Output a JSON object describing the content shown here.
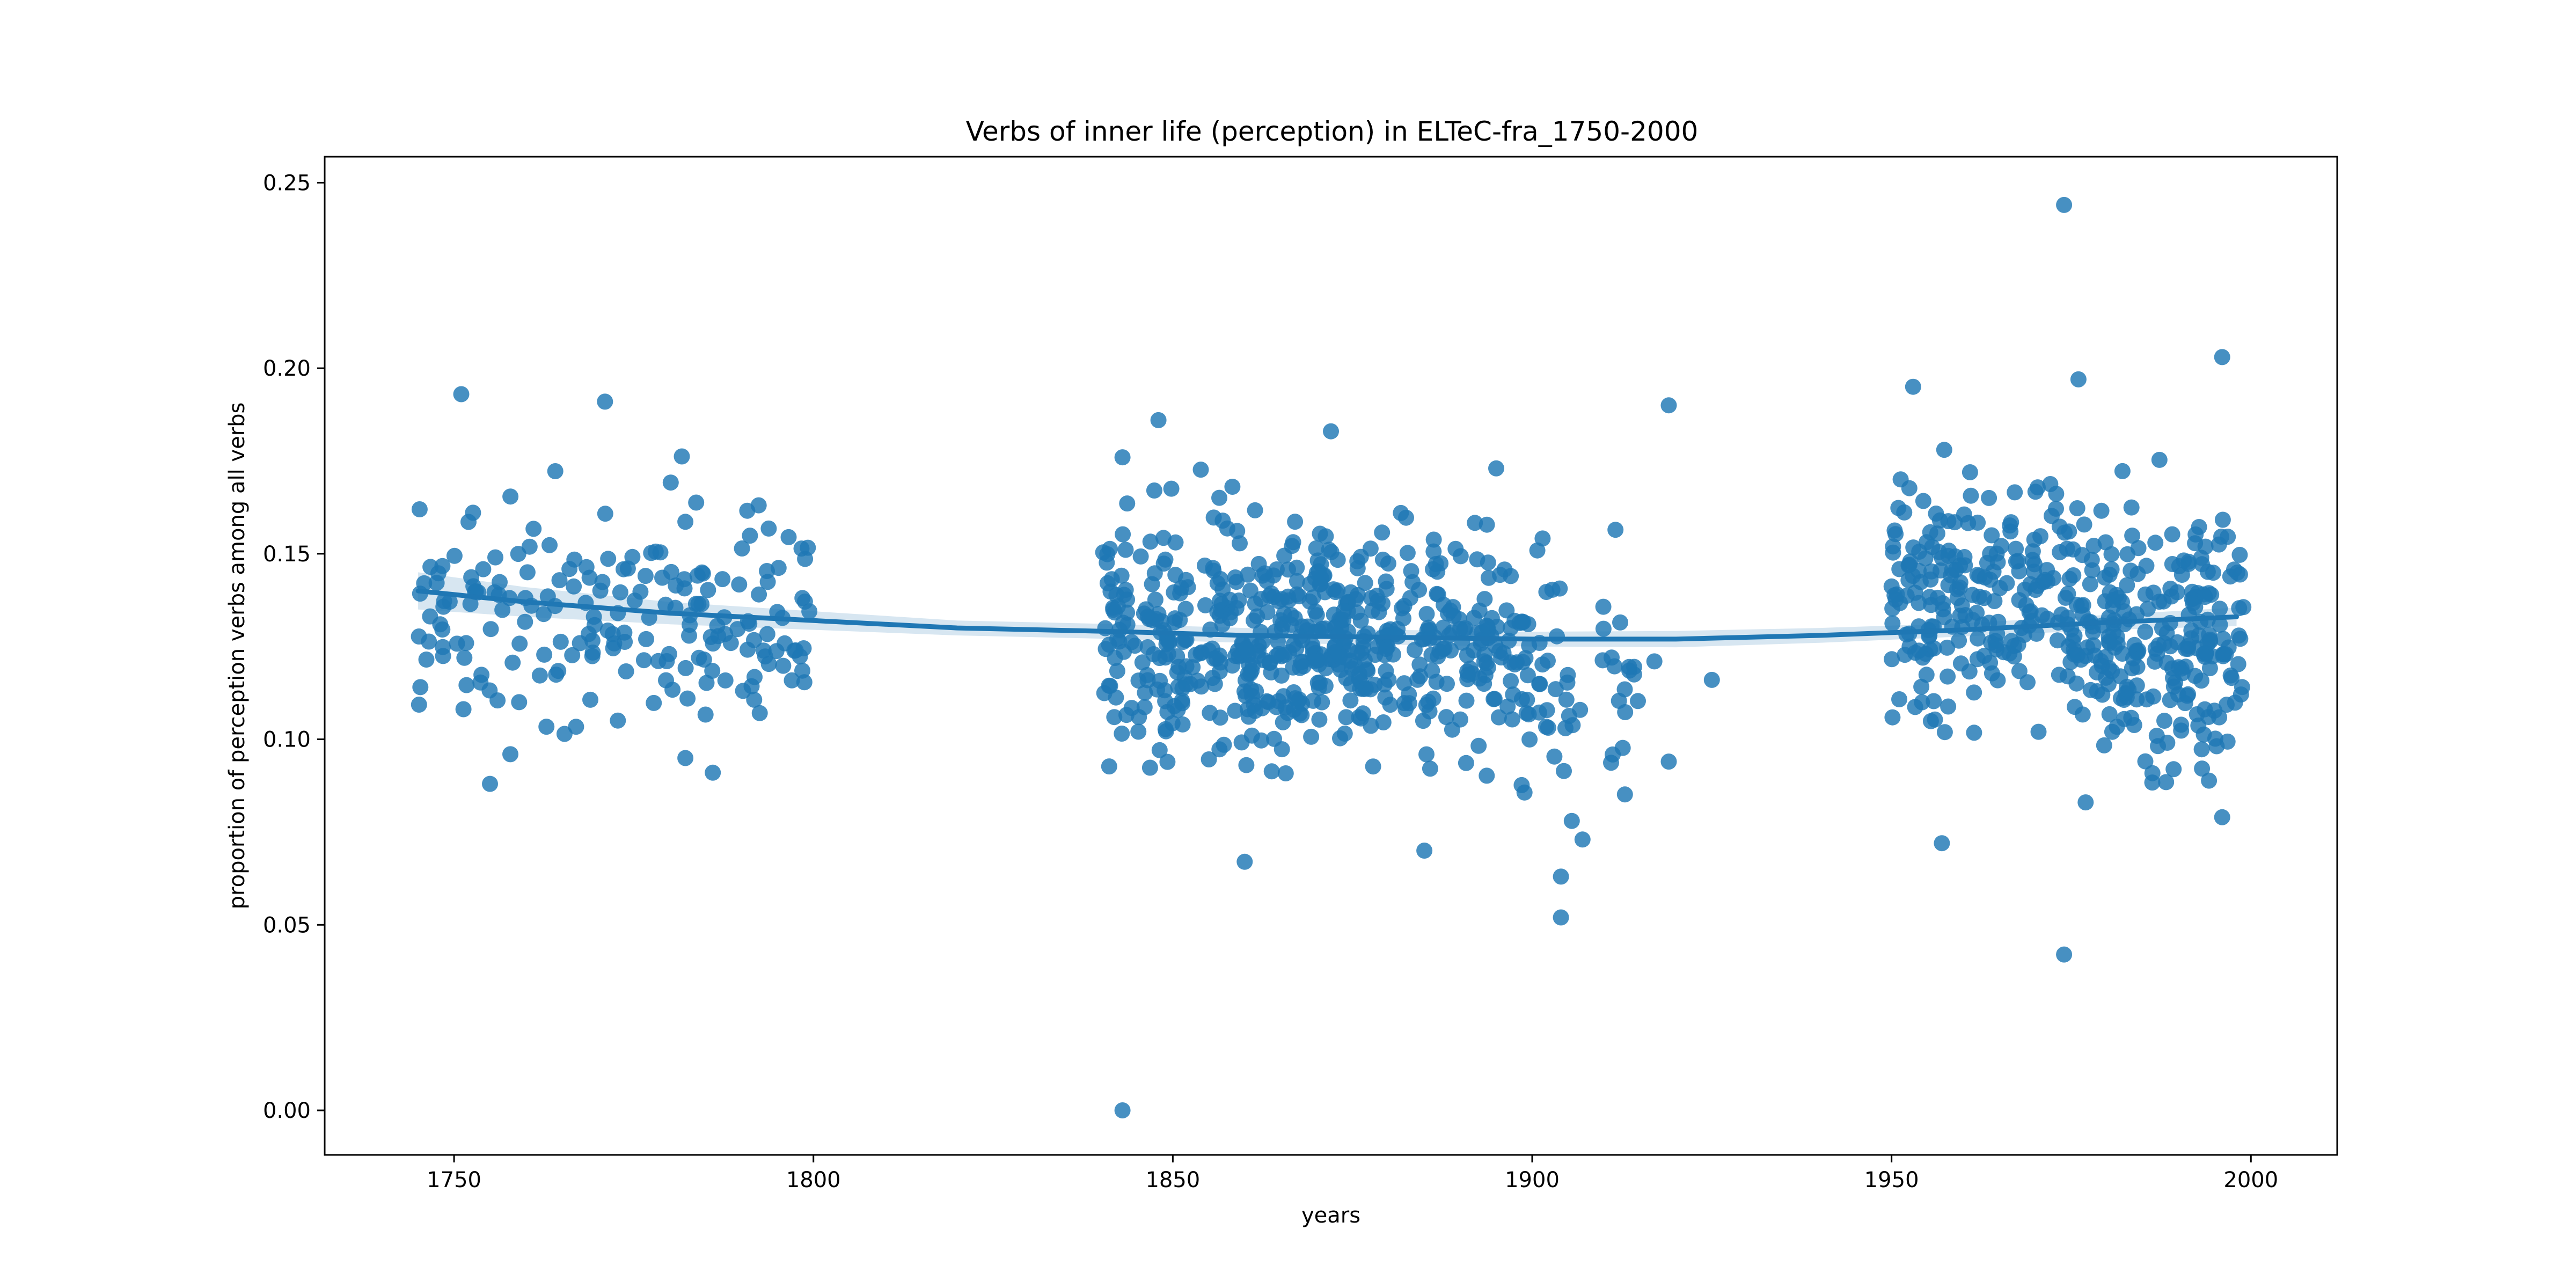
{
  "chart_data": {
    "type": "scatter",
    "title": "Verbs of inner life (perception) in ELTeC-fra_1750-2000",
    "xlabel": "years",
    "ylabel": "proportion of perception verbs among all verbs",
    "xlim": [
      1732,
      2012
    ],
    "ylim": [
      -0.012,
      0.257
    ],
    "xticks": [
      1750,
      1800,
      1850,
      1900,
      1950,
      2000
    ],
    "yticks": [
      0.0,
      0.05,
      0.1,
      0.15,
      0.2,
      0.25
    ],
    "ytick_labels": [
      "0.00",
      "0.05",
      "0.10",
      "0.15",
      "0.20",
      "0.25"
    ],
    "grid": false,
    "legend": "none",
    "colors": {
      "points": "#1f77b4",
      "trend": "#1f77b4",
      "band": "#1f77b4"
    },
    "trend": {
      "x": [
        1745,
        1760,
        1780,
        1800,
        1820,
        1843,
        1860,
        1880,
        1900,
        1920,
        1940,
        1960,
        1980,
        1998
      ],
      "y": [
        0.14,
        0.137,
        0.134,
        0.132,
        0.13,
        0.129,
        0.128,
        0.1275,
        0.127,
        0.127,
        0.128,
        0.1295,
        0.1315,
        0.133
      ],
      "ci": [
        0.005,
        0.004,
        0.003,
        0.0025,
        0.002,
        0.002,
        0.002,
        0.002,
        0.002,
        0.0022,
        0.002,
        0.0018,
        0.002,
        0.0025
      ]
    },
    "outliers": [
      {
        "x": 1843,
        "y": 0.0
      },
      {
        "x": 1974,
        "y": 0.244
      },
      {
        "x": 1974,
        "y": 0.042
      },
      {
        "x": 1919,
        "y": 0.19
      },
      {
        "x": 1925,
        "y": 0.116
      },
      {
        "x": 1904,
        "y": 0.052
      },
      {
        "x": 1904,
        "y": 0.063
      },
      {
        "x": 1907,
        "y": 0.073
      },
      {
        "x": 1860,
        "y": 0.067
      },
      {
        "x": 1957,
        "y": 0.072
      },
      {
        "x": 1996,
        "y": 0.203
      },
      {
        "x": 1953,
        "y": 0.195
      },
      {
        "x": 1848,
        "y": 0.186
      },
      {
        "x": 1872,
        "y": 0.183
      },
      {
        "x": 1751,
        "y": 0.193
      },
      {
        "x": 1771,
        "y": 0.191
      },
      {
        "x": 1976,
        "y": 0.197
      },
      {
        "x": 1755,
        "y": 0.088
      },
      {
        "x": 1786,
        "y": 0.091
      },
      {
        "x": 1843,
        "y": 0.176
      },
      {
        "x": 1895,
        "y": 0.173
      },
      {
        "x": 1917,
        "y": 0.121
      },
      {
        "x": 1919,
        "y": 0.094
      },
      {
        "x": 1885,
        "y": 0.07
      },
      {
        "x": 1996,
        "y": 0.079
      },
      {
        "x": 1977,
        "y": 0.083
      }
    ],
    "clusters": [
      {
        "x": [
          1745,
          1800
        ],
        "mean": 0.135,
        "sd": 0.022,
        "n": 200,
        "seed": 11
      },
      {
        "x": [
          1840,
          1860
        ],
        "mean": 0.128,
        "sd": 0.022,
        "n": 180,
        "seed": 23
      },
      {
        "x": [
          1860,
          1880
        ],
        "mean": 0.126,
        "sd": 0.02,
        "n": 250,
        "seed": 37
      },
      {
        "x": [
          1880,
          1900
        ],
        "mean": 0.124,
        "sd": 0.02,
        "n": 150,
        "seed": 41
      },
      {
        "x": [
          1900,
          1915
        ],
        "mean": 0.118,
        "sd": 0.022,
        "n": 45,
        "seed": 53
      },
      {
        "x": [
          1950,
          1975
        ],
        "mean": 0.138,
        "sd": 0.022,
        "n": 210,
        "seed": 67
      },
      {
        "x": [
          1975,
          1999
        ],
        "mean": 0.128,
        "sd": 0.022,
        "n": 240,
        "seed": 79
      }
    ]
  }
}
